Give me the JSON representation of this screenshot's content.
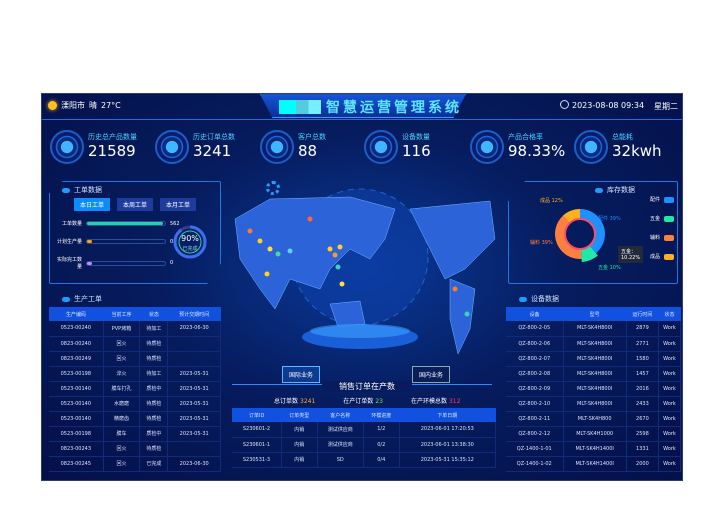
{
  "header": {
    "city": "溧阳市",
    "weather": "晴",
    "temp": "27°C",
    "title": "智慧运营管理系统",
    "datetime": "2023-08-08 09:34",
    "weekday": "星期二"
  },
  "kpis": [
    {
      "label": "历史总产品数量",
      "value": "21589"
    },
    {
      "label": "历史订单总数",
      "value": "3241"
    },
    {
      "label": "客户总数",
      "value": "88"
    },
    {
      "label": "设备数量",
      "value": "116"
    },
    {
      "label": "产品合格率",
      "value": "98.33%"
    },
    {
      "label": "总能耗",
      "value": "32kwh"
    }
  ],
  "work_orders": {
    "title": "工单数据",
    "tabs": [
      "本日工单",
      "本周工单",
      "本月工单"
    ],
    "active_tab": 0,
    "bars": [
      {
        "label": "工单数量",
        "value": "562",
        "fill": 0.98,
        "color": "#1fd6a0"
      },
      {
        "label": "计划生产量",
        "value": "0",
        "fill": 0.06,
        "color": "#ffa500"
      },
      {
        "label": "实际完工数量",
        "value": "0",
        "fill": 0.06,
        "color": "#c08cff"
      }
    ],
    "completion": {
      "percent": "90%",
      "label": "已完成",
      "value": 0.9
    }
  },
  "production": {
    "title": "生产工单",
    "columns": [
      "生产编码",
      "当前工序",
      "状态",
      "预计交期时间"
    ],
    "rows": [
      [
        "0523-00240",
        "PVP烤箱",
        "待加工",
        "2023-06-30"
      ],
      [
        "0823-00240",
        "回火",
        "待质检",
        ""
      ],
      [
        "0823-00249",
        "回火",
        "待质检",
        ""
      ],
      [
        "0523-00198",
        "淬火",
        "待加工",
        "2023-05-31"
      ],
      [
        "0523-00140",
        "膜车打孔",
        "质检中",
        "2023-05-31"
      ],
      [
        "0523-00140",
        "水磨磨",
        "待质检",
        "2023-05-31"
      ],
      [
        "0523-00140",
        "精磨齿",
        "待质检",
        "2023-05-31"
      ],
      [
        "0523-00198",
        "膜车",
        "质检中",
        "2023-05-31"
      ],
      [
        "0823-00243",
        "回火",
        "待质检",
        ""
      ],
      [
        "0823-00245",
        "回火",
        "已完成",
        "2023-06-30"
      ]
    ]
  },
  "inventory": {
    "title": "库存数据",
    "colors": {
      "配件": "#1e90ff",
      "五金": "#1fe8a8",
      "辅料": "#ff7f3f",
      "成品": "#ffb020"
    },
    "slices": [
      {
        "name": "配件",
        "label": "配件 39%",
        "value": 39,
        "color": "#1e90ff"
      },
      {
        "name": "五金",
        "label": "五金 10%",
        "value": 10,
        "color": "#1fe8a8"
      },
      {
        "name": "辅料",
        "label": "辅料 39%",
        "value": 39,
        "color": "#ff7f3f"
      },
      {
        "name": "成品",
        "label": "成品 12%",
        "value": 12,
        "color": "#ffb020"
      }
    ],
    "tooltip_name": "五金：",
    "tooltip_value": "10.22%"
  },
  "equipment": {
    "title": "设备数据",
    "columns": [
      "设备",
      "型号",
      "运行时间",
      "状态"
    ],
    "rows": [
      [
        "QZ-800-2-05",
        "MLT-SK4H800I",
        "2879",
        "Work"
      ],
      [
        "QZ-800-2-06",
        "MLT-SK4H800I",
        "2771",
        "Work"
      ],
      [
        "QZ-800-2-07",
        "MLT-SK4H800I",
        "1580",
        "Work"
      ],
      [
        "QZ-800-2-08",
        "MLT-SK4H800I",
        "1457",
        "Work"
      ],
      [
        "QZ-800-2-09",
        "MLT-SK4H800I",
        "2016",
        "Work"
      ],
      [
        "QZ-800-2-10",
        "MLT-SK4H800I",
        "2433",
        "Work"
      ],
      [
        "QZ-800-2-11",
        "MLT-SK4H800",
        "2670",
        "Work"
      ],
      [
        "QZ-800-2-12",
        "MLT-SK4H1000",
        "2598",
        "Work"
      ],
      [
        "QZ-1400-1-01",
        "MLT-SK4H1400I",
        "1331",
        "Work"
      ],
      [
        "QZ-1400-1-02",
        "MLT-SK4H1400I",
        "2000",
        "Work"
      ]
    ]
  },
  "sales": {
    "tab_intl": "国际业务",
    "tab_domestic": "国内业务",
    "title": "销售订单在产数",
    "stats": [
      {
        "label": "总订单数",
        "value": "3241",
        "color": "#ffb020"
      },
      {
        "label": "在产订单数",
        "value": "23",
        "color": "#6fe84a"
      },
      {
        "label": "在产环模总数",
        "value": "312",
        "color": "#ff3a5a"
      }
    ],
    "columns": [
      "订单ID",
      "订单类型",
      "客户名称",
      "环模进度",
      "下单日期"
    ],
    "rows": [
      [
        "S230601-2",
        "内销",
        "测试供应商",
        "1/2",
        "2023-06-01 17:20:53"
      ],
      [
        "S230601-1",
        "内销",
        "测试供应商",
        "0/2",
        "2023-06-01 13:38:30"
      ],
      [
        "S230531-3",
        "内销",
        "SD",
        "0/4",
        "2023-05-31 15:35:12"
      ]
    ]
  }
}
